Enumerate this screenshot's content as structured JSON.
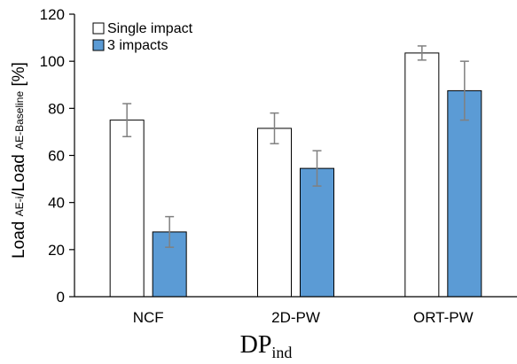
{
  "chart_data": {
    "type": "bar",
    "categories": [
      "NCF",
      "2D-PW",
      "ORT-PW"
    ],
    "series": [
      {
        "name": "Single impact",
        "values": [
          75,
          71.5,
          103.5
        ],
        "error": [
          7,
          6.5,
          3
        ],
        "color": "#ffffff"
      },
      {
        "name": "3 impacts",
        "values": [
          27.5,
          54.5,
          87.5
        ],
        "error": [
          6.5,
          7.5,
          12.5
        ],
        "color": "#5b9bd5"
      }
    ],
    "ylim": [
      0,
      120
    ],
    "yticks": [
      0,
      20,
      40,
      60,
      80,
      100,
      120
    ],
    "ylabel": {
      "load1": "Load ",
      "sub1": "AE-i",
      "slash": "/Load ",
      "sub2": "AE-Baseline",
      "unit": " [%]"
    },
    "xlabel": {
      "main": "DP",
      "sub": "ind"
    },
    "grid": false,
    "legend": "top-left",
    "errorbar_color": "#808080"
  }
}
